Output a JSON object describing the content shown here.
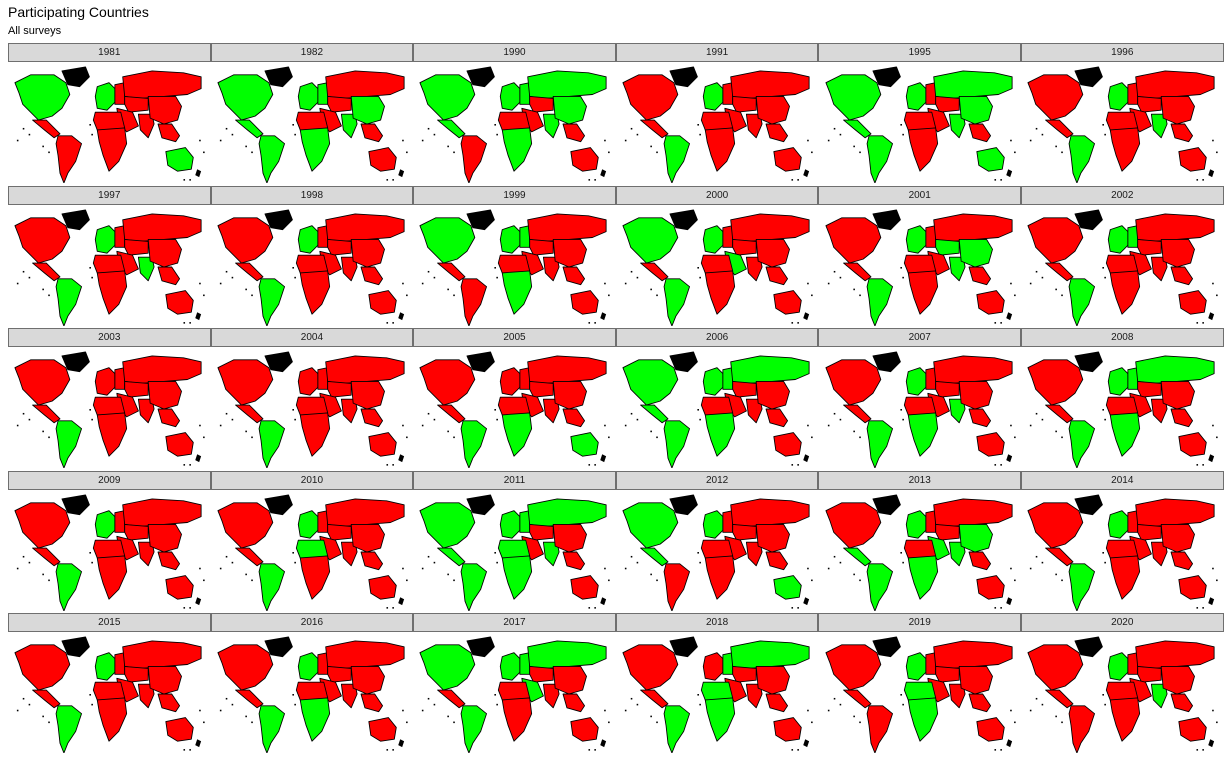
{
  "title": "Participating Countries",
  "subtitle": "All surveys",
  "colors": {
    "participating": "#00ff00",
    "not_participating": "#ff0000",
    "no_data": "#000000",
    "border": "#000000"
  },
  "chart_data": {
    "type": "choropleth-map-grid",
    "title": "Participating Countries",
    "subtitle": "All surveys",
    "facet_ncol": 6,
    "value_map": {
      "participating": "green",
      "not_participating": "red",
      "no_data": "black"
    },
    "regions": [
      "north_america",
      "greenland",
      "central_america",
      "south_america",
      "europe_west",
      "europe_east",
      "russia",
      "middle_east",
      "central_asia",
      "south_asia",
      "east_asia",
      "southeast_asia",
      "north_africa",
      "sub_saharan_africa",
      "oceania"
    ],
    "panels": [
      {
        "year": "1981",
        "participating": [
          "north_america",
          "oceania",
          "europe_west"
        ]
      },
      {
        "year": "1982",
        "participating": [
          "north_america",
          "central_america",
          "south_america",
          "europe_west",
          "europe_east",
          "south_asia",
          "sub_saharan_africa",
          "east_asia"
        ]
      },
      {
        "year": "1990",
        "participating": [
          "north_america",
          "central_america",
          "europe_west",
          "europe_east",
          "russia",
          "east_asia",
          "south_asia",
          "sub_saharan_africa"
        ]
      },
      {
        "year": "1991",
        "participating": [
          "south_america",
          "europe_west"
        ]
      },
      {
        "year": "1995",
        "participating": [
          "north_america",
          "central_america",
          "south_america",
          "europe_west",
          "russia",
          "east_asia",
          "south_asia",
          "oceania"
        ]
      },
      {
        "year": "1996",
        "participating": [
          "south_america",
          "europe_west",
          "south_asia"
        ]
      },
      {
        "year": "1997",
        "participating": [
          "south_america",
          "europe_west",
          "south_asia"
        ]
      },
      {
        "year": "1998",
        "participating": [
          "south_america",
          "europe_west"
        ]
      },
      {
        "year": "1999",
        "participating": [
          "north_america",
          "europe_west",
          "europe_east",
          "sub_saharan_africa"
        ]
      },
      {
        "year": "2000",
        "participating": [
          "north_america",
          "south_america",
          "europe_west",
          "middle_east"
        ]
      },
      {
        "year": "2001",
        "participating": [
          "south_america",
          "europe_west",
          "east_asia",
          "south_asia",
          "central_asia"
        ]
      },
      {
        "year": "2002",
        "participating": [
          "south_america",
          "europe_west",
          "europe_east"
        ]
      },
      {
        "year": "2003",
        "participating": [
          "south_america"
        ]
      },
      {
        "year": "2004",
        "participating": [
          "south_america"
        ]
      },
      {
        "year": "2005",
        "participating": [
          "south_america",
          "sub_saharan_africa",
          "oceania"
        ]
      },
      {
        "year": "2006",
        "participating": [
          "north_america",
          "central_america",
          "south_america",
          "europe_west",
          "russia",
          "europe_east",
          "sub_saharan_africa"
        ]
      },
      {
        "year": "2007",
        "participating": [
          "south_america",
          "south_asia",
          "sub_saharan_africa",
          "europe_west"
        ]
      },
      {
        "year": "2008",
        "participating": [
          "south_america",
          "russia",
          "europe_east",
          "sub_saharan_africa",
          "europe_west"
        ]
      },
      {
        "year": "2009",
        "participating": [
          "south_america",
          "europe_west"
        ]
      },
      {
        "year": "2010",
        "participating": [
          "south_america",
          "europe_west",
          "north_africa"
        ]
      },
      {
        "year": "2011",
        "participating": [
          "north_america",
          "central_america",
          "south_america",
          "europe_west",
          "europe_east",
          "russia",
          "south_asia",
          "sub_saharan_africa",
          "north_africa"
        ]
      },
      {
        "year": "2012",
        "participating": [
          "north_america",
          "central_america",
          "europe_west",
          "oceania"
        ]
      },
      {
        "year": "2013",
        "participating": [
          "south_america",
          "central_america",
          "europe_west",
          "south_asia",
          "sub_saharan_africa",
          "middle_east",
          "east_asia"
        ]
      },
      {
        "year": "2014",
        "participating": [
          "south_america",
          "europe_west"
        ]
      },
      {
        "year": "2015",
        "participating": [
          "south_america",
          "europe_west"
        ]
      },
      {
        "year": "2016",
        "participating": [
          "south_america",
          "sub_saharan_africa",
          "europe_west"
        ]
      },
      {
        "year": "2017",
        "participating": [
          "north_america",
          "south_america",
          "europe_west",
          "russia",
          "middle_east",
          "europe_east"
        ]
      },
      {
        "year": "2018",
        "participating": [
          "south_america",
          "europe_east",
          "russia",
          "north_africa",
          "sub_saharan_africa"
        ]
      },
      {
        "year": "2019",
        "participating": [
          "europe_west",
          "sub_saharan_africa",
          "north_africa"
        ]
      },
      {
        "year": "2020",
        "participating": [
          "europe_west",
          "south_asia"
        ]
      }
    ]
  }
}
